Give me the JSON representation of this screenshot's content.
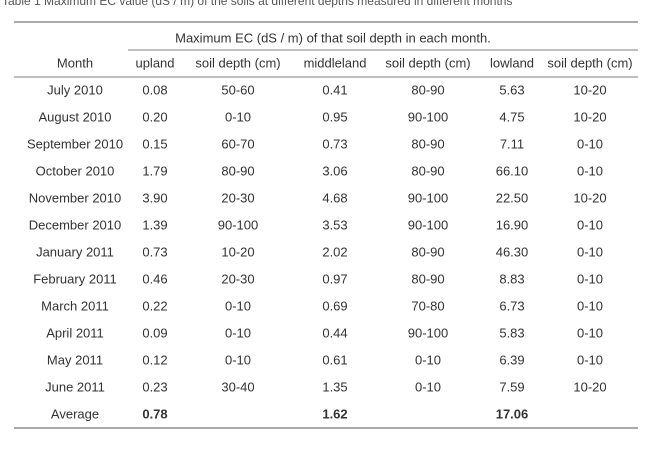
{
  "table": {
    "caption": "Table 1  Maximum EC value (dS / m) of the soils at different depths measured in different months",
    "group_header": "Maximum EC (dS / m) of that soil depth in each month.",
    "columns": [
      "Month",
      "upland",
      "soil depth (cm)",
      "middleland",
      "soil depth (cm)",
      "lowland",
      "soil depth (cm)"
    ],
    "rows": [
      [
        "July 2010",
        "0.08",
        "50-60",
        "0.41",
        "80-90",
        "5.63",
        "10-20"
      ],
      [
        "August 2010",
        "0.20",
        "0-10",
        "0.95",
        "90-100",
        "4.75",
        "10-20"
      ],
      [
        "September 2010",
        "0.15",
        "60-70",
        "0.73",
        "80-90",
        "7.11",
        "0-10"
      ],
      [
        "October 2010",
        "1.79",
        "80-90",
        "3.06",
        "80-90",
        "66.10",
        "0-10"
      ],
      [
        "November 2010",
        "3.90",
        "20-30",
        "4.68",
        "90-100",
        "22.50",
        "10-20"
      ],
      [
        "December 2010",
        "1.39",
        "90-100",
        "3.53",
        "90-100",
        "16.90",
        "0-10"
      ],
      [
        "January 2011",
        "0.73",
        "10-20",
        "2.02",
        "80-90",
        "46.30",
        "0-10"
      ],
      [
        "February 2011",
        "0.46",
        "20-30",
        "0.97",
        "80-90",
        "8.83",
        "0-10"
      ],
      [
        "March 2011",
        "0.22",
        "0-10",
        "0.69",
        "70-80",
        "6.73",
        "0-10"
      ],
      [
        "April 2011",
        "0.09",
        "0-10",
        "0.44",
        "90-100",
        "5.83",
        "0-10"
      ],
      [
        "May 2011",
        "0.12",
        "0-10",
        "0.61",
        "0-10",
        "6.39",
        "0-10"
      ],
      [
        "June 2011",
        "0.23",
        "30-40",
        "1.35",
        "0-10",
        "7.59",
        "10-20"
      ]
    ],
    "average": {
      "label": "Average",
      "upland": "0.78",
      "middleland": "1.62",
      "lowland": "17.06"
    }
  }
}
